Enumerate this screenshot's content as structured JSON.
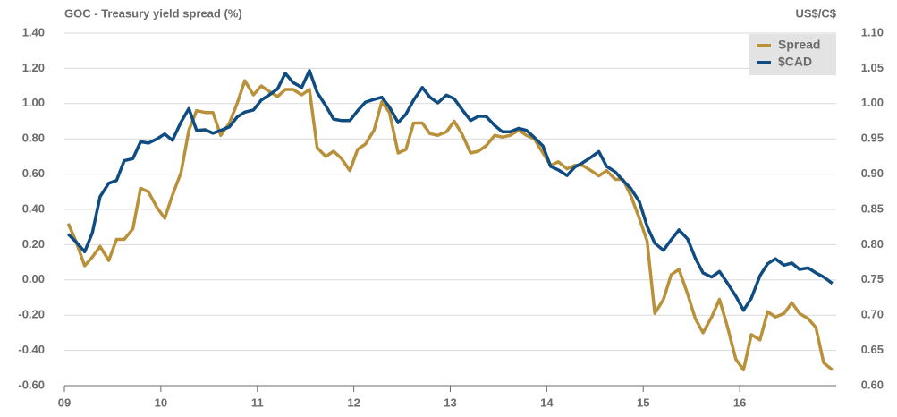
{
  "chart_data": {
    "type": "line",
    "title": "GOC - Treasury yield spread (%)",
    "y2_label": "US$/C$",
    "x": [
      2009.04,
      2009.12,
      2009.21,
      2009.29,
      2009.37,
      2009.46,
      2009.54,
      2009.62,
      2009.71,
      2009.79,
      2009.87,
      2009.96,
      2010.04,
      2010.12,
      2010.21,
      2010.29,
      2010.37,
      2010.46,
      2010.54,
      2010.62,
      2010.71,
      2010.79,
      2010.87,
      2010.96,
      2011.04,
      2011.12,
      2011.21,
      2011.29,
      2011.37,
      2011.46,
      2011.54,
      2011.62,
      2011.71,
      2011.79,
      2011.87,
      2011.96,
      2012.04,
      2012.12,
      2012.21,
      2012.29,
      2012.37,
      2012.46,
      2012.54,
      2012.62,
      2012.71,
      2012.79,
      2012.87,
      2012.96,
      2013.04,
      2013.12,
      2013.21,
      2013.29,
      2013.37,
      2013.46,
      2013.54,
      2013.62,
      2013.71,
      2013.79,
      2013.87,
      2013.96,
      2014.04,
      2014.12,
      2014.21,
      2014.29,
      2014.37,
      2014.46,
      2014.54,
      2014.62,
      2014.71,
      2014.79,
      2014.87,
      2014.96,
      2015.04,
      2015.12,
      2015.21,
      2015.29,
      2015.37,
      2015.46,
      2015.54,
      2015.62,
      2015.71,
      2015.79,
      2015.87,
      2015.96,
      2016.04,
      2016.12,
      2016.21,
      2016.29,
      2016.37,
      2016.46,
      2016.54,
      2016.62,
      2016.71,
      2016.79,
      2016.87,
      2016.96
    ],
    "series": [
      {
        "name": "Spread",
        "color": "#b8913a",
        "axis": "y",
        "values": [
          0.32,
          0.22,
          0.08,
          0.13,
          0.19,
          0.11,
          0.23,
          0.23,
          0.29,
          0.52,
          0.5,
          0.41,
          0.35,
          0.48,
          0.61,
          0.85,
          0.96,
          0.95,
          0.95,
          0.82,
          0.89,
          1.0,
          1.13,
          1.05,
          1.1,
          1.07,
          1.04,
          1.08,
          1.08,
          1.05,
          1.08,
          0.75,
          0.7,
          0.73,
          0.69,
          0.62,
          0.74,
          0.77,
          0.85,
          1.01,
          0.95,
          0.72,
          0.74,
          0.89,
          0.89,
          0.83,
          0.82,
          0.84,
          0.9,
          0.83,
          0.72,
          0.73,
          0.76,
          0.82,
          0.81,
          0.82,
          0.85,
          0.82,
          0.8,
          0.72,
          0.65,
          0.67,
          0.63,
          0.65,
          0.65,
          0.62,
          0.59,
          0.62,
          0.57,
          0.57,
          0.48,
          0.35,
          0.22,
          -0.19,
          -0.11,
          0.03,
          0.06,
          -0.08,
          -0.22,
          -0.3,
          -0.21,
          -0.11,
          -0.26,
          -0.45,
          -0.51,
          -0.31,
          -0.34,
          -0.18,
          -0.21,
          -0.19,
          -0.13,
          -0.19,
          -0.22,
          -0.27,
          -0.47,
          -0.51
        ]
      },
      {
        "name": "$CAD",
        "color": "#0f4c81",
        "axis": "y2",
        "values": [
          0.815,
          0.804,
          0.79,
          0.817,
          0.868,
          0.887,
          0.891,
          0.919,
          0.922,
          0.946,
          0.944,
          0.95,
          0.957,
          0.948,
          0.974,
          0.993,
          0.962,
          0.963,
          0.958,
          0.962,
          0.967,
          0.981,
          0.988,
          0.991,
          1.005,
          1.012,
          1.021,
          1.043,
          1.03,
          1.023,
          1.047,
          1.016,
          0.997,
          0.978,
          0.976,
          0.976,
          0.99,
          1.002,
          1.006,
          1.009,
          0.995,
          0.973,
          0.985,
          1.005,
          1.023,
          1.009,
          1.001,
          1.012,
          1.007,
          0.992,
          0.976,
          0.982,
          0.982,
          0.969,
          0.96,
          0.96,
          0.965,
          0.962,
          0.952,
          0.94,
          0.911,
          0.906,
          0.898,
          0.91,
          0.916,
          0.924,
          0.932,
          0.911,
          0.903,
          0.891,
          0.88,
          0.861,
          0.826,
          0.802,
          0.792,
          0.807,
          0.821,
          0.808,
          0.781,
          0.76,
          0.754,
          0.762,
          0.746,
          0.727,
          0.707,
          0.724,
          0.756,
          0.773,
          0.78,
          0.771,
          0.774,
          0.765,
          0.767,
          0.76,
          0.754,
          0.745
        ]
      }
    ],
    "xlim": [
      2009,
      2017
    ],
    "xticks": [
      {
        "value": 2009,
        "label": "09"
      },
      {
        "value": 2010,
        "label": "10"
      },
      {
        "value": 2011,
        "label": "11"
      },
      {
        "value": 2012,
        "label": "12"
      },
      {
        "value": 2013,
        "label": "13"
      },
      {
        "value": 2014,
        "label": "14"
      },
      {
        "value": 2015,
        "label": "15"
      },
      {
        "value": 2016,
        "label": "16"
      }
    ],
    "ylim": [
      -0.6,
      1.4
    ],
    "yticks": [
      {
        "value": 1.4,
        "label": "1.40"
      },
      {
        "value": 1.2,
        "label": "1.20"
      },
      {
        "value": 1.0,
        "label": "1.00"
      },
      {
        "value": 0.8,
        "label": "0.80"
      },
      {
        "value": 0.6,
        "label": "0.60"
      },
      {
        "value": 0.4,
        "label": "0.40"
      },
      {
        "value": 0.2,
        "label": "0.20"
      },
      {
        "value": 0,
        "label": "0.00"
      },
      {
        "value": -0.2,
        "label": "-0.20"
      },
      {
        "value": -0.4,
        "label": "-0.40"
      },
      {
        "value": -0.6,
        "label": "-0.60"
      }
    ],
    "y2lim": [
      0.6,
      1.1
    ],
    "y2ticks": [
      {
        "value": 1.1,
        "label": "1.10"
      },
      {
        "value": 1.05,
        "label": "1.05"
      },
      {
        "value": 1.0,
        "label": "1.00"
      },
      {
        "value": 0.95,
        "label": "0.95"
      },
      {
        "value": 0.9,
        "label": "0.90"
      },
      {
        "value": 0.85,
        "label": "0.85"
      },
      {
        "value": 0.8,
        "label": "0.80"
      },
      {
        "value": 0.75,
        "label": "0.75"
      },
      {
        "value": 0.7,
        "label": "0.70"
      },
      {
        "value": 0.65,
        "label": "0.65"
      },
      {
        "value": 0.6,
        "label": "0.60"
      }
    ],
    "grid": true,
    "legend": "upper right"
  }
}
